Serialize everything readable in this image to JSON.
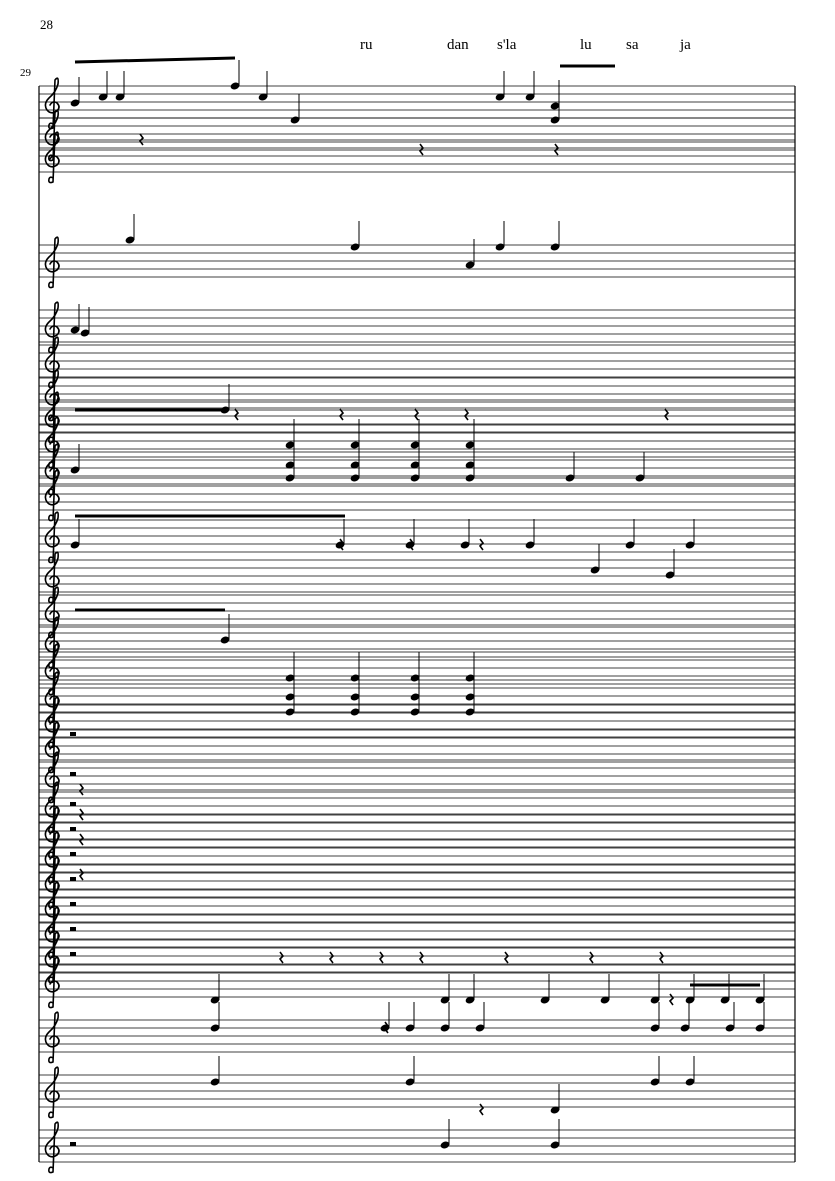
{
  "page_number": "28",
  "system": {
    "measure_number": "29",
    "lyrics": [
      "ru",
      "dan",
      "s'la",
      "lu",
      "sa",
      "ja"
    ],
    "clef": "treble",
    "staff_count": 31
  }
}
